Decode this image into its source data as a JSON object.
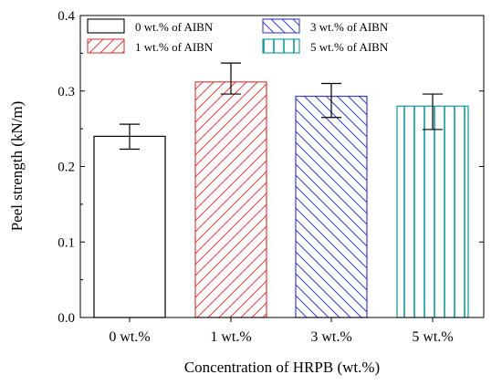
{
  "chart_data": {
    "type": "bar",
    "xlabel": "Concentration of HRPB (wt.%)",
    "ylabel": "Peel strength (kN/m)",
    "categories": [
      "0 wt.%",
      "1 wt.%",
      "3 wt.%",
      "5 wt.%"
    ],
    "values": [
      0.24,
      0.312,
      0.293,
      0.28
    ],
    "error_low": [
      0.223,
      0.296,
      0.265,
      0.249
    ],
    "error_high": [
      0.256,
      0.337,
      0.31,
      0.296
    ],
    "ylim": [
      0,
      0.4
    ],
    "yticks": [
      "0.0",
      "0.1",
      "0.2",
      "0.3",
      "0.4"
    ],
    "grid": false,
    "legend_placement": "top",
    "legend": [
      {
        "label": "0 wt.% of AIBN",
        "pattern": "none",
        "color": "#000000"
      },
      {
        "label": "1 wt.% of AIBN",
        "pattern": "diagonal-right",
        "color": "#e23b3b"
      },
      {
        "label": "3 wt.% of AIBN",
        "pattern": "diagonal-left",
        "color": "#3b3bd6"
      },
      {
        "label": "5 wt.% of AIBN",
        "pattern": "vertical",
        "color": "#0f9a9a"
      }
    ]
  }
}
